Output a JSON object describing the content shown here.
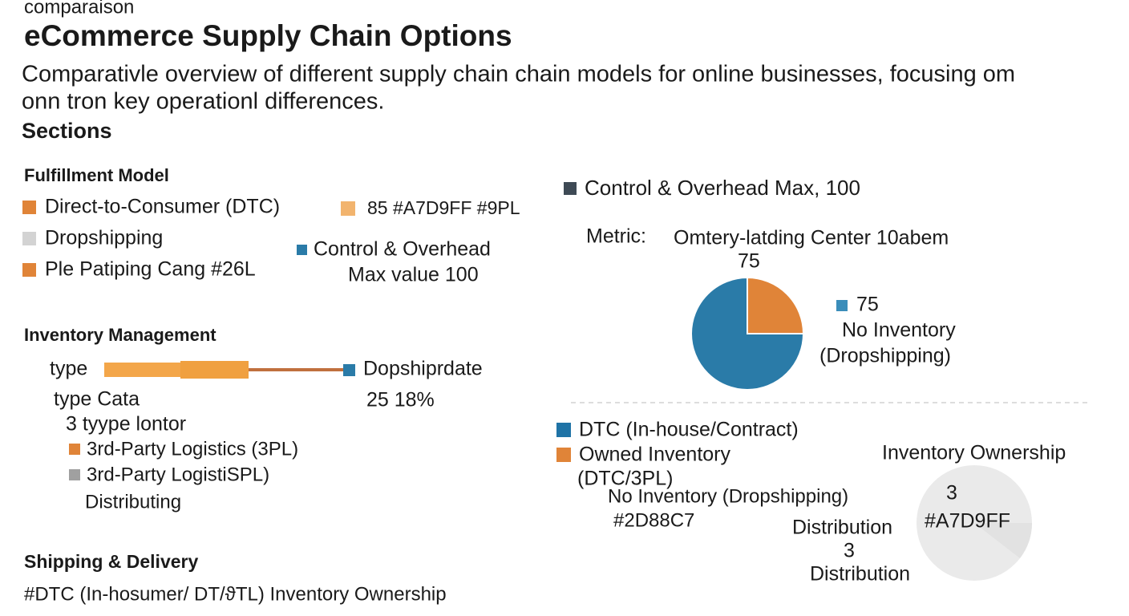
{
  "header": {
    "kicker": "comparaison",
    "title": "eCommerce Supply Chain Options",
    "subtitle_lines": [
      "Comparativle overview  of different supply chain chain models for online businesses, focusing om",
      "onn tron key operationl differences."
    ],
    "sections_label": "Sections"
  },
  "fulfillment": {
    "title": "Fulfillment Model",
    "legend": [
      "Direct-to-Consumer (DTC)",
      "Dropshipping",
      "Ple Patiping Cang #26L"
    ],
    "note": "85  #A7D9FF #9PL",
    "control_lines": [
      "Control & Overhead",
      "Max value 100"
    ]
  },
  "inventory": {
    "title": "Inventory Management",
    "bar_label": "type",
    "bar_end_label": "Dopshiprdate",
    "bar_value": "25 18%",
    "lines": [
      "type Cata",
      "3 tyype lontor"
    ],
    "legend": [
      "3rd-Party Logistics (3PL)",
      "3rd-Party LogistiSPL)"
    ],
    "footer": "Distributing"
  },
  "shipping": {
    "title": "Shipping & Delivery",
    "text": "#DTC (In-hosumer/ DT/ϑTL) Inventory Ownership"
  },
  "pie_panel": {
    "legend": "Control & Overhead Max, 100",
    "metric_label": "Metric:",
    "metric_name": "Omtery-latding Center 10abem",
    "pie": {
      "values": [
        25,
        75
      ],
      "colors": [
        "#E08438",
        "#2A7BA8"
      ]
    },
    "legend_lines": [
      "No Inventory",
      "(Dropshipping)"
    ]
  },
  "ownership": {
    "legend": [
      "DTC (In-house/Contract)",
      "Owned Inventory",
      "(DTC/3PL)",
      "No Inventory (Dropshipping)",
      "#2D88C7",
      "Distribution",
      "3",
      "Distribution"
    ],
    "title": "Inventory Ownership",
    "center": [
      "3",
      "#A7D9FF"
    ]
  }
}
